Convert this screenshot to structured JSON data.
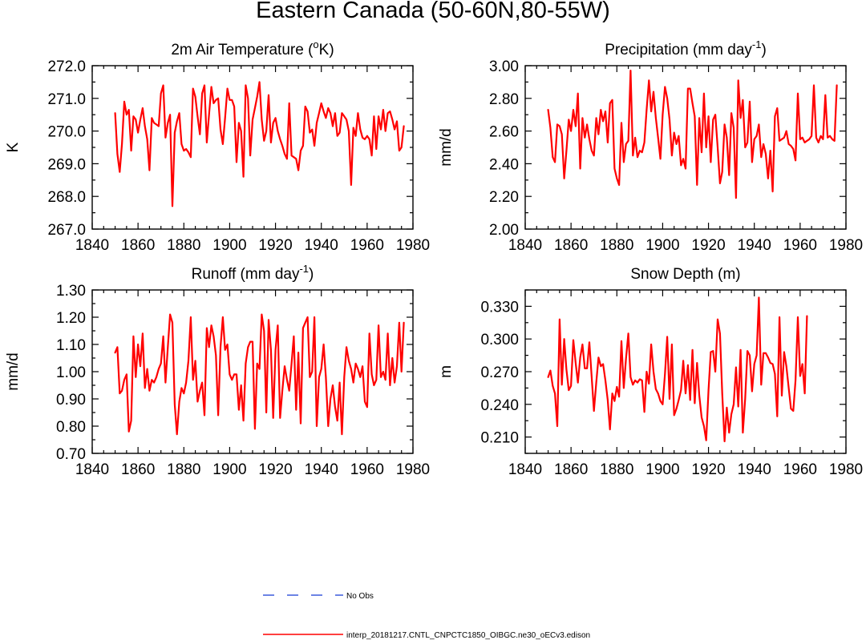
{
  "title": "Eastern Canada (50-60N,80-55W)",
  "colors": {
    "model": "#ff0000",
    "obs": "#3b5bdb",
    "frame": "#000000"
  },
  "legend": [
    {
      "label": "No Obs",
      "style": "dashed",
      "color": "#3b5bdb"
    },
    {
      "label": "interp_20181217.CNTL_CNPCTC1850_OIBGC.ne30_oECv3.edison",
      "style": "solid",
      "color": "#ff0000"
    }
  ],
  "chart_data": [
    {
      "type": "line",
      "title": "2m Air Temperature (",
      "title_sup": "o",
      "title_after": "K)",
      "xlabel": "",
      "ylabel": "K",
      "xlim": [
        1840,
        1980
      ],
      "ylim": [
        267.0,
        272.0
      ],
      "xticks": [
        1840,
        1860,
        1880,
        1900,
        1920,
        1940,
        1960,
        1980
      ],
      "yticks": [
        267.0,
        268.0,
        269.0,
        270.0,
        271.0,
        272.0
      ],
      "ytick_labels": [
        "267.0",
        "268.0",
        "269.0",
        "270.0",
        "271.0",
        "272.0"
      ],
      "x_start": 1850,
      "series": [
        {
          "name": "interp_20181217.CNTL_CNPCTC1850_OIBGC.ne30_oECv3.edison",
          "values": [
            270.55,
            269.3,
            268.75,
            269.6,
            270.9,
            270.5,
            270.65,
            269.4,
            270.45,
            270.35,
            269.95,
            270.35,
            270.7,
            270.15,
            269.75,
            268.8,
            270.4,
            270.25,
            270.2,
            270.15,
            271.15,
            271.4,
            269.8,
            270.25,
            270.5,
            267.7,
            269.95,
            270.3,
            270.55,
            269.6,
            269.4,
            269.45,
            269.35,
            269.2,
            271.3,
            271.05,
            270.45,
            269.9,
            271.15,
            271.4,
            269.65,
            270.5,
            271.35,
            270.85,
            270.95,
            271.0,
            270.05,
            269.6,
            270.4,
            271.3,
            270.95,
            270.95,
            270.75,
            269.05,
            270.25,
            270.0,
            268.6,
            271.4,
            271.0,
            269.25,
            270.35,
            270.7,
            271.05,
            271.5,
            270.35,
            269.7,
            270.0,
            271.1,
            269.65,
            270.25,
            270.4,
            270.0,
            269.75,
            269.55,
            269.3,
            269.15,
            270.85,
            269.25,
            269.2,
            269.15,
            268.8,
            269.4,
            269.55,
            270.75,
            270.6,
            269.95,
            270.05,
            269.55,
            270.25,
            270.55,
            270.85,
            270.6,
            270.4,
            270.7,
            270.55,
            270.15,
            270.55,
            269.85,
            269.95,
            270.55,
            270.45,
            270.35,
            270.0,
            268.35,
            270.1,
            269.85,
            270.55,
            270.05,
            269.8,
            269.75,
            269.85,
            269.75,
            269.25,
            270.45,
            269.45,
            270.45,
            270.05,
            270.65,
            270.0,
            270.55,
            270.6,
            270.35,
            270.05,
            270.3,
            269.4,
            269.5,
            270.15
          ]
        }
      ]
    },
    {
      "type": "line",
      "title": "Precipitation (mm day",
      "title_sup": "-1",
      "title_after": ")",
      "xlabel": "",
      "ylabel": "mm/d",
      "xlim": [
        1840,
        1980
      ],
      "ylim": [
        2.0,
        3.0
      ],
      "xticks": [
        1840,
        1860,
        1880,
        1900,
        1920,
        1940,
        1960,
        1980
      ],
      "yticks": [
        2.0,
        2.2,
        2.4,
        2.6,
        2.8,
        3.0
      ],
      "ytick_labels": [
        "2.00",
        "2.20",
        "2.40",
        "2.60",
        "2.80",
        "3.00"
      ],
      "x_start": 1850,
      "series": [
        {
          "name": "interp_20181217.CNTL_CNPCTC1850_OIBGC.ne30_oECv3.edison",
          "values": [
            2.73,
            2.62,
            2.44,
            2.41,
            2.64,
            2.63,
            2.58,
            2.31,
            2.48,
            2.67,
            2.6,
            2.73,
            2.63,
            2.83,
            2.37,
            2.68,
            2.56,
            2.64,
            2.55,
            2.48,
            2.45,
            2.68,
            2.58,
            2.73,
            2.66,
            2.72,
            2.53,
            2.77,
            2.79,
            2.37,
            2.31,
            2.27,
            2.65,
            2.41,
            2.52,
            2.54,
            2.97,
            2.45,
            2.56,
            2.44,
            2.48,
            2.47,
            2.53,
            2.73,
            2.91,
            2.72,
            2.84,
            2.68,
            2.56,
            2.43,
            2.7,
            2.87,
            2.8,
            2.67,
            2.45,
            2.59,
            2.52,
            2.57,
            2.39,
            2.43,
            2.37,
            2.86,
            2.86,
            2.77,
            2.69,
            2.27,
            2.68,
            2.47,
            2.83,
            2.5,
            2.69,
            2.41,
            2.67,
            2.7,
            2.5,
            2.28,
            2.35,
            2.64,
            2.56,
            2.33,
            2.71,
            2.62,
            2.19,
            2.91,
            2.68,
            2.79,
            2.5,
            2.53,
            2.78,
            2.41,
            2.55,
            2.57,
            2.64,
            2.44,
            2.52,
            2.46,
            2.31,
            2.48,
            2.23,
            2.69,
            2.74,
            2.54,
            2.55,
            2.56,
            2.6,
            2.52,
            2.51,
            2.49,
            2.42,
            2.83,
            2.55,
            2.56,
            2.53,
            2.54,
            2.55,
            2.57,
            2.88,
            2.56,
            2.53,
            2.57,
            2.55,
            2.82,
            2.56,
            2.57,
            2.55,
            2.54,
            2.88
          ]
        }
      ]
    },
    {
      "type": "line",
      "title": "Runoff (mm day",
      "title_sup": "-1",
      "title_after": ")",
      "xlabel": "",
      "ylabel": "mm/d",
      "xlim": [
        1840,
        1980
      ],
      "ylim": [
        0.7,
        1.3
      ],
      "xticks": [
        1840,
        1860,
        1880,
        1900,
        1920,
        1940,
        1960,
        1980
      ],
      "yticks": [
        0.7,
        0.8,
        0.9,
        1.0,
        1.1,
        1.2,
        1.3
      ],
      "ytick_labels": [
        "0.70",
        "0.80",
        "0.90",
        "1.00",
        "1.10",
        "1.20",
        "1.30"
      ],
      "x_start": 1850,
      "series": [
        {
          "name": "interp_20181217.CNTL_CNPCTC1850_OIBGC.ne30_oECv3.edison",
          "values": [
            1.07,
            1.09,
            0.92,
            0.93,
            0.97,
            0.99,
            0.78,
            0.82,
            1.13,
            0.98,
            1.1,
            1.02,
            1.14,
            0.94,
            1.01,
            0.93,
            0.97,
            0.96,
            0.98,
            1.01,
            1.03,
            1.13,
            0.96,
            1.09,
            1.21,
            1.18,
            0.88,
            0.77,
            0.89,
            0.94,
            0.92,
            0.96,
            1.04,
            1.2,
            0.97,
            1.04,
            0.89,
            0.93,
            0.96,
            0.84,
            1.16,
            1.09,
            1.17,
            1.13,
            1.06,
            0.84,
            1.09,
            1.2,
            1.08,
            1.1,
            0.99,
            0.97,
            0.99,
            0.99,
            0.86,
            0.95,
            0.82,
            1.03,
            1.09,
            1.11,
            1.11,
            0.79,
            1.03,
            1.01,
            1.21,
            1.15,
            0.85,
            1.19,
            1.08,
            0.83,
            1.08,
            1.17,
            0.83,
            0.93,
            1.02,
            0.97,
            0.93,
            1.03,
            1.13,
            0.86,
            1.07,
            0.81,
            1.16,
            1.18,
            1.2,
            0.98,
            1.0,
            1.2,
            0.8,
            0.98,
            1.01,
            1.1,
            0.98,
            0.8,
            0.9,
            0.95,
            0.87,
            0.82,
            0.96,
            0.77,
            0.98,
            1.09,
            1.04,
            1.01,
            0.96,
            1.03,
            1.01,
            0.98,
            1.02,
            0.89,
            0.87,
            1.14,
            0.99,
            0.95,
            0.97,
            1.17,
            0.98,
            1.0,
            0.97,
            1.14,
            0.95,
            1.05,
            0.96,
            1.02,
            1.18,
            1.0,
            1.18
          ]
        }
      ]
    },
    {
      "type": "line",
      "title": "Snow Depth (m)",
      "title_sup": "",
      "title_after": "",
      "xlabel": "",
      "ylabel": "m",
      "xlim": [
        1840,
        1980
      ],
      "ylim": [
        0.195,
        0.345
      ],
      "xticks": [
        1840,
        1860,
        1880,
        1900,
        1920,
        1940,
        1960,
        1980
      ],
      "yticks": [
        0.21,
        0.24,
        0.27,
        0.3,
        0.33
      ],
      "ytick_labels": [
        "0.210",
        "0.240",
        "0.270",
        "0.300",
        "0.330"
      ],
      "x_start": 1850,
      "series": [
        {
          "name": "interp_20181217.CNTL_CNPCTC1850_OIBGC.ne30_oECv3.edison",
          "values": [
            0.265,
            0.271,
            0.257,
            0.25,
            0.22,
            0.318,
            0.258,
            0.3,
            0.272,
            0.253,
            0.257,
            0.299,
            0.278,
            0.26,
            0.283,
            0.295,
            0.273,
            0.273,
            0.297,
            0.265,
            0.234,
            0.26,
            0.283,
            0.275,
            0.277,
            0.262,
            0.244,
            0.217,
            0.25,
            0.243,
            0.256,
            0.247,
            0.298,
            0.255,
            0.282,
            0.305,
            0.265,
            0.258,
            0.262,
            0.26,
            0.263,
            0.262,
            0.233,
            0.27,
            0.259,
            0.295,
            0.27,
            0.254,
            0.25,
            0.243,
            0.24,
            0.268,
            0.302,
            0.245,
            0.295,
            0.23,
            0.236,
            0.244,
            0.253,
            0.28,
            0.25,
            0.276,
            0.244,
            0.29,
            0.241,
            0.278,
            0.248,
            0.228,
            0.22,
            0.207,
            0.253,
            0.288,
            0.289,
            0.27,
            0.318,
            0.305,
            0.25,
            0.206,
            0.237,
            0.214,
            0.231,
            0.24,
            0.274,
            0.238,
            0.29,
            0.214,
            0.245,
            0.289,
            0.285,
            0.252,
            0.277,
            0.285,
            0.338,
            0.258,
            0.287,
            0.287,
            0.283,
            0.278,
            0.277,
            0.268,
            0.229,
            0.32,
            0.248,
            0.288,
            0.275,
            0.255,
            0.236,
            0.234,
            0.262,
            0.32,
            0.266,
            0.277,
            0.25,
            0.321
          ]
        }
      ]
    }
  ]
}
